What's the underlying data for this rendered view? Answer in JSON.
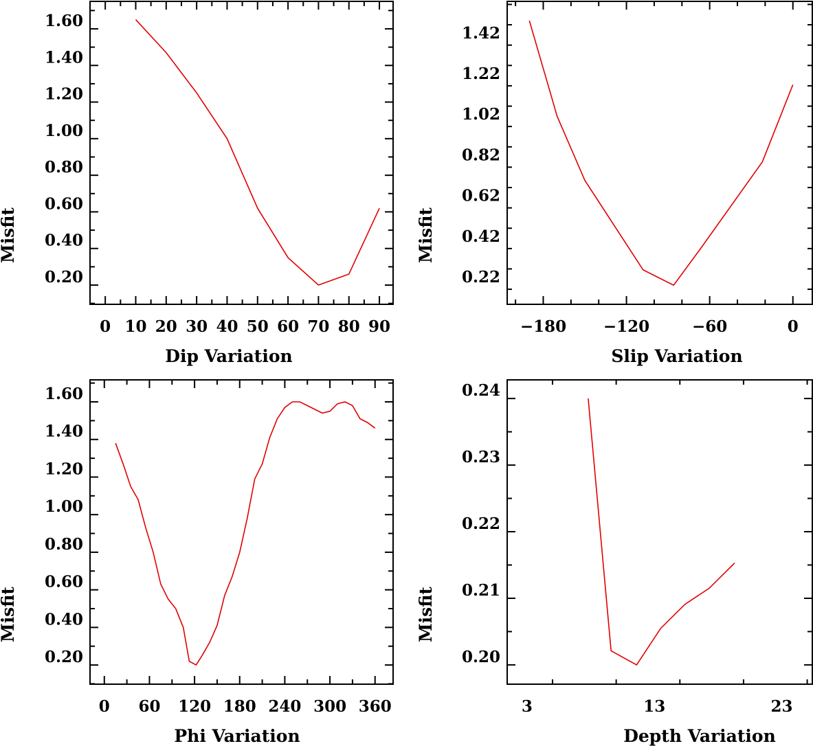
{
  "chart_data": [
    {
      "type": "line",
      "id": "dip",
      "xlabel": "Dip    Variation",
      "ylabel": "Misfit",
      "xlim": [
        -5,
        94.5
      ],
      "ylim": [
        0.095,
        1.75
      ],
      "xticks": [
        0,
        10,
        20,
        30,
        40,
        50,
        60,
        70,
        80,
        90
      ],
      "xtick_labels": [
        "0",
        "10",
        "20",
        "30",
        "40",
        "50",
        "60",
        "70",
        "80",
        "90"
      ],
      "xminor": 5,
      "yticks": [
        0.2,
        0.4,
        0.6,
        0.8,
        1.0,
        1.2,
        1.4,
        1.6
      ],
      "ytick_labels": [
        "0.20",
        "0.40",
        "0.60",
        "0.80",
        "1.00",
        "1.20",
        "1.40",
        "1.60"
      ],
      "yminor": 0.1,
      "x": [
        10,
        20,
        30,
        40,
        50,
        60,
        70,
        80,
        90
      ],
      "y": [
        1.65,
        1.47,
        1.25,
        1.0,
        0.62,
        0.35,
        0.2,
        0.26,
        0.62
      ],
      "color": "#e00000"
    },
    {
      "type": "line",
      "id": "slip",
      "xlabel": "Slip   Variation",
      "ylabel": "Misfit",
      "xlim": [
        -206,
        14
      ],
      "ylim": [
        0.126,
        1.615
      ],
      "xticks": [
        -180,
        -120,
        -60,
        0
      ],
      "xtick_labels": [
        "−180",
        "−120",
        "−60",
        "0"
      ],
      "xminor": 20,
      "yticks": [
        0.22,
        0.42,
        0.62,
        0.82,
        1.02,
        1.22,
        1.42
      ],
      "ytick_labels": [
        "0.22",
        "0.42",
        "0.62",
        "0.82",
        "1.02",
        "1.22",
        "1.42"
      ],
      "yminor": 0.1,
      "x": [
        -190,
        -170,
        -150,
        -108,
        -86,
        -66,
        -22,
        0
      ],
      "y": [
        1.52,
        1.05,
        0.735,
        0.295,
        0.22,
        0.405,
        0.826,
        1.205
      ],
      "color": "#e00000"
    },
    {
      "type": "line",
      "id": "phi",
      "xlabel": "Phi    Variation",
      "ylabel": "Misfit",
      "xlim": [
        -19,
        384
      ],
      "ylim": [
        0.098,
        1.717
      ],
      "xticks": [
        0,
        60,
        120,
        180,
        240,
        300,
        360
      ],
      "xtick_labels": [
        "0",
        "60",
        "120",
        "180",
        "240",
        "300",
        "360"
      ],
      "xminor": 30,
      "yticks": [
        0.2,
        0.4,
        0.6,
        0.8,
        1.0,
        1.2,
        1.4,
        1.6
      ],
      "ytick_labels": [
        "0.20",
        "0.40",
        "0.60",
        "0.80",
        "1.00",
        "1.20",
        "1.40",
        "1.60"
      ],
      "yminor": 0.1,
      "x": [
        15,
        25,
        35,
        45,
        55,
        65,
        75,
        85,
        95,
        105,
        113,
        122,
        130,
        140,
        150,
        160,
        170,
        180,
        190,
        200,
        210,
        220,
        230,
        240,
        250,
        260,
        270,
        280,
        290,
        300,
        310,
        320,
        330,
        340,
        350,
        360
      ],
      "y": [
        1.38,
        1.27,
        1.15,
        1.08,
        0.93,
        0.8,
        0.63,
        0.55,
        0.5,
        0.4,
        0.22,
        0.2,
        0.25,
        0.32,
        0.41,
        0.57,
        0.67,
        0.8,
        0.98,
        1.19,
        1.27,
        1.41,
        1.51,
        1.57,
        1.6,
        1.6,
        1.58,
        1.56,
        1.54,
        1.55,
        1.59,
        1.6,
        1.58,
        1.51,
        1.49,
        1.46
      ],
      "color": "#e00000"
    },
    {
      "type": "line",
      "id": "depth",
      "xlabel": "Depth  Variation",
      "ylabel": "Misfit",
      "xlim": [
        1.44,
        25.4
      ],
      "ylim": [
        0.1971,
        0.2428
      ],
      "xticks": [
        3,
        13,
        23
      ],
      "xtick_labels": [
        "3",
        "13",
        "23"
      ],
      "xminor": 5,
      "yticks": [
        0.2,
        0.21,
        0.22,
        0.23,
        0.24
      ],
      "ytick_labels": [
        "0.20",
        "0.21",
        "0.22",
        "0.23",
        "0.24"
      ],
      "yminor": 0.005,
      "x": [
        7.8,
        9.6,
        11.6,
        13.5,
        15.4,
        17.3,
        19.3
      ],
      "y": [
        0.24,
        0.2021,
        0.2,
        0.2055,
        0.2091,
        0.2115,
        0.2153
      ],
      "color": "#e00000"
    }
  ]
}
